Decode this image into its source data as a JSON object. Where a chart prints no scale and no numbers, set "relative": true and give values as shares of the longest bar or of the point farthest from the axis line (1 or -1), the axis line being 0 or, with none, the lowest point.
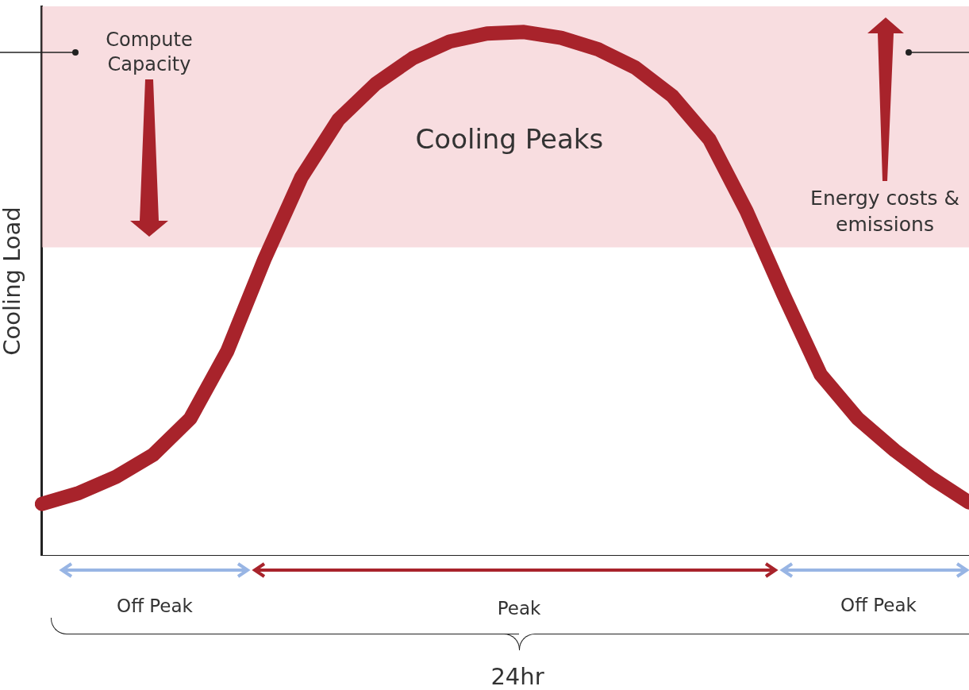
{
  "chart_data": {
    "type": "line",
    "relative": true,
    "ylabel": "Cooling Load",
    "categories": [
      null,
      null,
      null,
      null,
      null,
      null,
      null,
      null,
      null,
      null,
      null,
      null,
      null,
      null,
      null,
      null,
      null,
      null,
      null,
      null,
      null,
      null,
      null,
      null,
      null,
      null
    ],
    "series": [
      {
        "color": "#a8232b",
        "values": [
          0.099,
          0.12,
          0.151,
          0.193,
          0.262,
          0.391,
          0.566,
          0.723,
          0.833,
          0.901,
          0.95,
          0.982,
          0.997,
          1,
          0.989,
          0.967,
          0.932,
          0.878,
          0.795,
          0.658,
          0.498,
          0.346,
          0.262,
          0.201,
          0.148,
          0.102
        ]
      }
    ],
    "bands": [
      {
        "axis": "y",
        "from": 0.589,
        "to": 1.049,
        "label": "Cooling Peaks",
        "color": "#f4c6cb"
      }
    ],
    "annotations": [
      "Compute Capacity",
      "Energy costs & emissions",
      "Off Peak",
      "Peak",
      "Off Peak",
      "24hr"
    ],
    "grid": false,
    "legend": false,
    "marker": "none",
    "line_style": "solid"
  }
}
